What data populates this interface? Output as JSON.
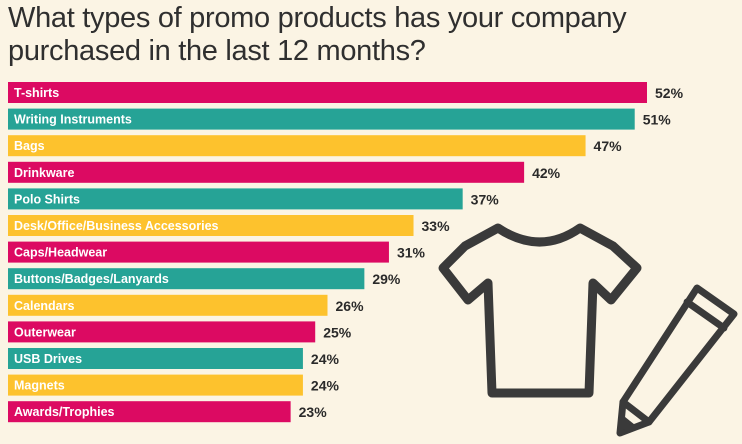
{
  "title": "What types of promo products has your company purchased in the last 12 months?",
  "colors": {
    "pink": "#dc0a62",
    "teal": "#26a396",
    "yellow": "#fdc22d",
    "background": "#fbf4e4",
    "icon_stroke": "#3a3a3a"
  },
  "icons": [
    "t-shirt-icon",
    "pencil-icon"
  ],
  "chart_data": {
    "type": "bar",
    "orientation": "horizontal",
    "title": "What types of promo products has your company purchased in the last 12 months?",
    "categories": [
      "T-shirts",
      "Writing Instruments",
      "Bags",
      "Drinkware",
      "Polo Shirts",
      "Desk/Office/Business Accessories",
      "Caps/Headwear",
      "Buttons/Badges/Lanyards",
      "Calendars",
      "Outerwear",
      "USB Drives",
      "Magnets",
      "Awards/Trophies"
    ],
    "values": [
      52,
      51,
      47,
      42,
      37,
      33,
      31,
      29,
      26,
      25,
      24,
      24,
      23
    ],
    "value_labels": [
      "52%",
      "51%",
      "47%",
      "42%",
      "37%",
      "33%",
      "31%",
      "29%",
      "26%",
      "25%",
      "24%",
      "24%",
      "23%"
    ],
    "bar_colors": [
      "pink",
      "teal",
      "yellow",
      "pink",
      "teal",
      "yellow",
      "pink",
      "teal",
      "yellow",
      "pink",
      "teal",
      "yellow",
      "pink"
    ],
    "xlim": [
      0,
      52
    ],
    "grid": false,
    "legend": "none"
  }
}
